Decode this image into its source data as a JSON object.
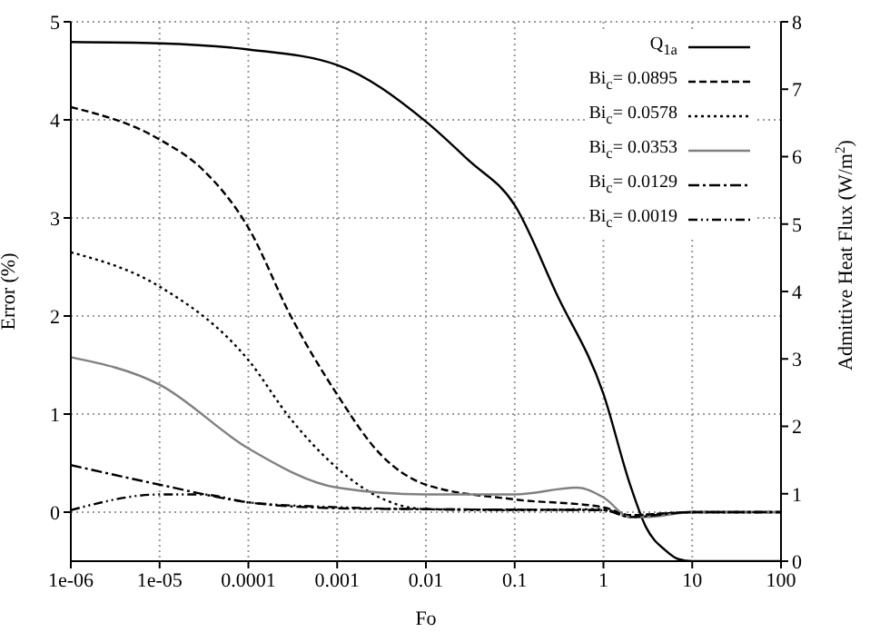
{
  "chart_data": {
    "type": "line",
    "xlabel": "Fo",
    "ylabel": "Error (%)",
    "y2label": "Admittive Heat Flux (W/m$^{2}$)",
    "log": "x",
    "xlim": [
      1e-06,
      100
    ],
    "xticks": [
      {
        "value": 1e-06,
        "label": "1e-06"
      },
      {
        "value": 1e-05,
        "label": "1e-05"
      },
      0.0001,
      0.001,
      0.01,
      0.1,
      1,
      10,
      100
    ],
    "ylim": [
      -0.5,
      5
    ],
    "yticks": [
      0,
      1,
      2,
      3,
      4,
      5
    ],
    "y2lim": [
      0,
      8
    ],
    "y2ticks": [
      0,
      1,
      2,
      3,
      4,
      5,
      6,
      7,
      8
    ],
    "grid": true,
    "legend": "top right",
    "marker": "none",
    "series": [
      {
        "name": "Q$_{1a}$",
        "color": "#000000",
        "axis": "y2",
        "line_style": "solid",
        "x": [
          1e-06,
          1e-05,
          0.0001,
          0.001,
          0.01,
          0.03,
          0.1,
          0.3,
          1,
          2,
          3,
          5,
          7,
          10,
          100
        ],
        "values": [
          7.7,
          7.68,
          7.59,
          7.36,
          6.52,
          5.95,
          5.28,
          3.95,
          2.48,
          1.13,
          0.51,
          0.16,
          0.03,
          0,
          0
        ]
      },
      {
        "name": "Bi$_{c}$= 0.0895",
        "color": "#000000",
        "line_style": "dashed",
        "x": [
          1e-06,
          1e-05,
          3e-05,
          0.0001,
          0.0003,
          0.001,
          0.003,
          0.01,
          0.1,
          1,
          2,
          10,
          100
        ],
        "values": [
          4.13,
          3.8,
          3.5,
          2.9,
          2.0,
          1.2,
          0.6,
          0.28,
          0.13,
          0.05,
          -0.03,
          0,
          0
        ]
      },
      {
        "name": "Bi$_{c}$= 0.0578",
        "color": "#000000",
        "line_style": "dotted",
        "x": [
          1e-06,
          1e-05,
          0.0001,
          0.0003,
          0.001,
          0.003,
          0.01,
          0.1,
          1,
          2,
          10,
          100
        ],
        "values": [
          2.65,
          2.3,
          1.55,
          0.95,
          0.45,
          0.15,
          0.03,
          0.02,
          0.03,
          -0.05,
          0,
          0
        ]
      },
      {
        "name": "Bi$_{c}$= 0.0353",
        "color": "#808080",
        "line_style": "solid",
        "x": [
          1e-06,
          1e-05,
          0.0001,
          0.001,
          0.01,
          0.1,
          0.5,
          1,
          2,
          3,
          10,
          100
        ],
        "values": [
          1.58,
          1.3,
          0.65,
          0.25,
          0.18,
          0.18,
          0.25,
          0.15,
          -0.05,
          -0.05,
          0,
          0
        ]
      },
      {
        "name": "Bi$_{c}$= 0.0129",
        "color": "#000000",
        "line_style": "dashdot",
        "x": [
          1e-06,
          1e-05,
          0.0001,
          0.001,
          0.01,
          1,
          2,
          10,
          100
        ],
        "values": [
          0.48,
          0.28,
          0.1,
          0.04,
          0.03,
          0.02,
          -0.05,
          0,
          0
        ]
      },
      {
        "name": "Bi$_{c}$= 0.0019",
        "color": "#000000",
        "line_style": "dashdotdot",
        "x": [
          1e-06,
          1e-05,
          3e-05,
          0.0001,
          0.001,
          0.01,
          1,
          2,
          10,
          100
        ],
        "values": [
          0.02,
          0.18,
          0.18,
          0.1,
          0.05,
          0.03,
          0.02,
          -0.03,
          0,
          0
        ]
      }
    ]
  }
}
